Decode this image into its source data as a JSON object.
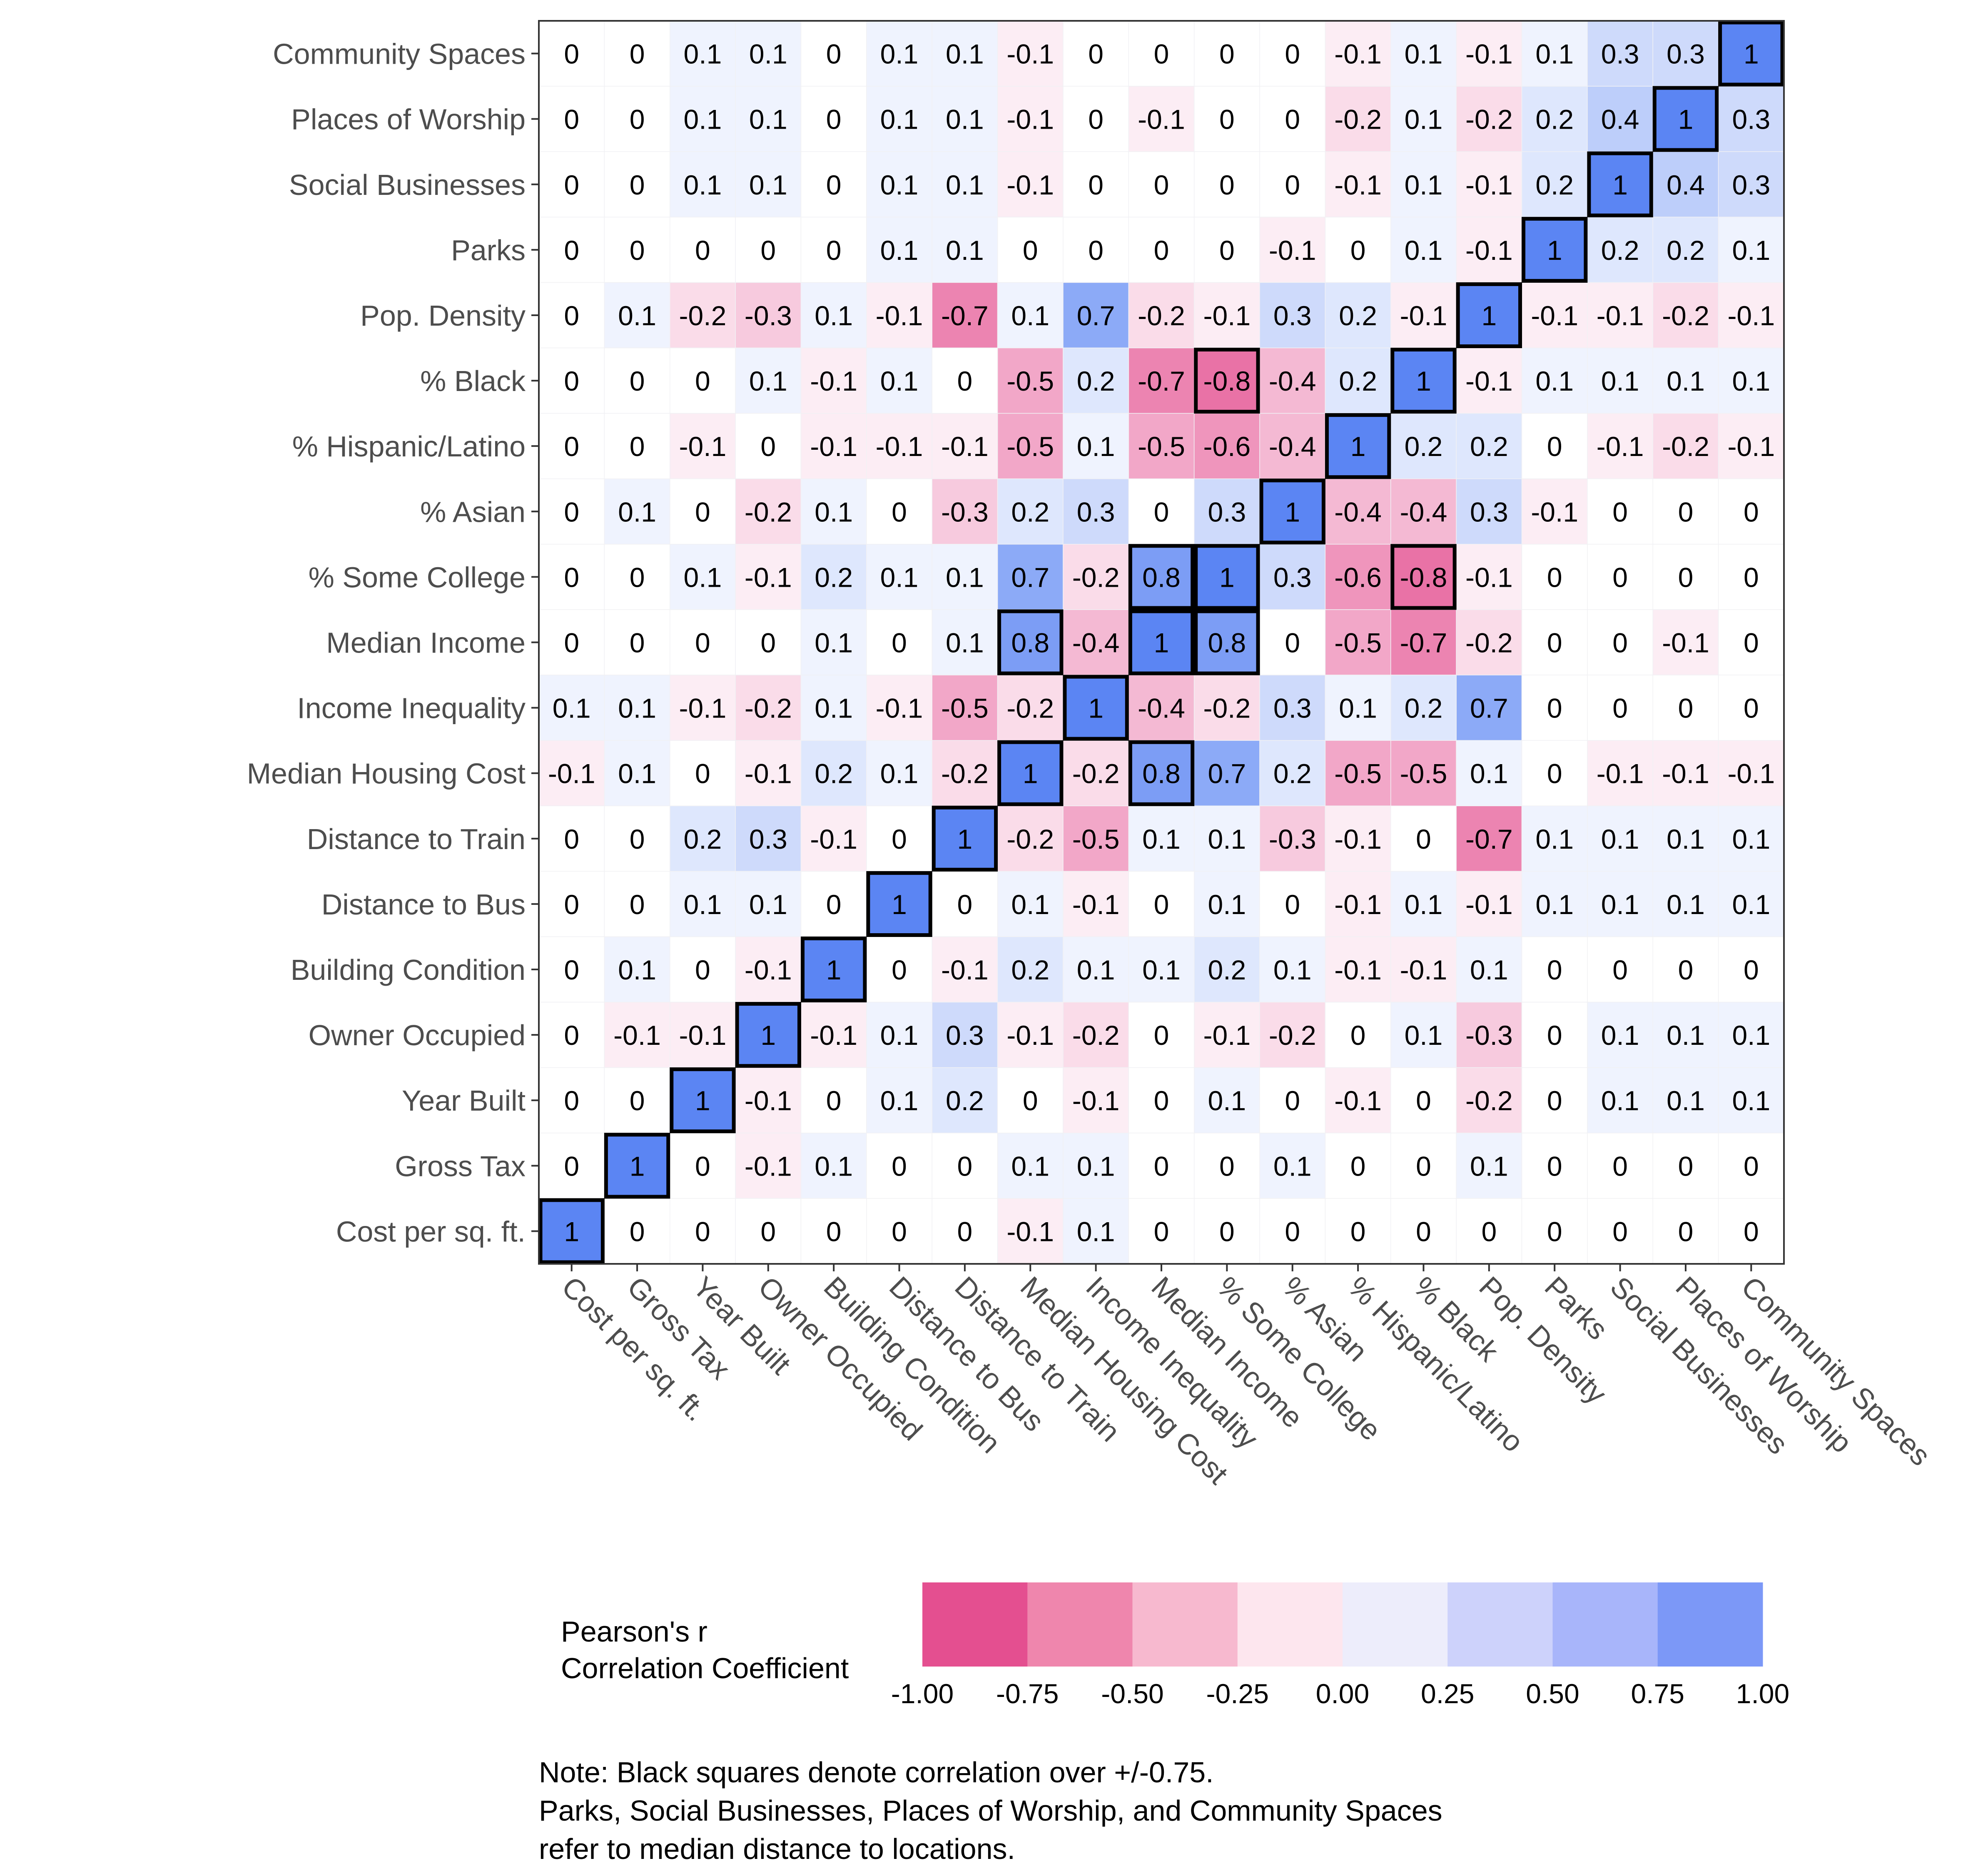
{
  "chart_data": {
    "type": "heatmap",
    "title": "",
    "x_labels": [
      "Cost per sq. ft.",
      "Gross Tax",
      "Year Built",
      "Owner Occupied",
      "Building Condition",
      "Distance to Bus",
      "Distance to Train",
      "Median Housing Cost",
      "Income Inequality",
      "Median Income",
      "% Some College",
      "% Asian",
      "% Hispanic/Latino",
      "% Black",
      "Pop. Density",
      "Parks",
      "Social Businesses",
      "Places of Worship",
      "Community Spaces"
    ],
    "y_labels_top_to_bottom": [
      "Community Spaces",
      "Places of Worship",
      "Social Businesses",
      "Parks",
      "Pop. Density",
      "% Black",
      "% Hispanic/Latino",
      "% Asian",
      "% Some College",
      "Median Income",
      "Income Inequality",
      "Median Housing Cost",
      "Distance to Train",
      "Distance to Bus",
      "Building Condition",
      "Owner Occupied",
      "Year Built",
      "Gross Tax",
      "Cost per sq. ft."
    ],
    "values_rows_top_to_bottom": [
      [
        0,
        0,
        0.1,
        0.1,
        0,
        0.1,
        0.1,
        -0.1,
        0,
        0,
        0,
        0,
        -0.1,
        0.1,
        -0.1,
        0.1,
        0.3,
        0.3,
        1
      ],
      [
        0,
        0,
        0.1,
        0.1,
        0,
        0.1,
        0.1,
        -0.1,
        0,
        -0.1,
        0,
        0,
        -0.2,
        0.1,
        -0.2,
        0.2,
        0.4,
        1,
        0.3
      ],
      [
        0,
        0,
        0.1,
        0.1,
        0,
        0.1,
        0.1,
        -0.1,
        0,
        0,
        0,
        0,
        -0.1,
        0.1,
        -0.1,
        0.2,
        1,
        0.4,
        0.3
      ],
      [
        0,
        0,
        0,
        0,
        0,
        0.1,
        0.1,
        0,
        0,
        0,
        0,
        -0.1,
        0,
        0.1,
        -0.1,
        1,
        0.2,
        0.2,
        0.1
      ],
      [
        0,
        0.1,
        -0.2,
        -0.3,
        0.1,
        -0.1,
        -0.7,
        0.1,
        0.7,
        -0.2,
        -0.1,
        0.3,
        0.2,
        -0.1,
        1,
        -0.1,
        -0.1,
        -0.2,
        -0.1
      ],
      [
        0,
        0,
        0,
        0.1,
        -0.1,
        0.1,
        0,
        -0.5,
        0.2,
        -0.7,
        -0.8,
        -0.4,
        0.2,
        1,
        -0.1,
        0.1,
        0.1,
        0.1,
        0.1
      ],
      [
        0,
        0,
        -0.1,
        0,
        -0.1,
        -0.1,
        -0.1,
        -0.5,
        0.1,
        -0.5,
        -0.6,
        -0.4,
        1,
        0.2,
        0.2,
        0,
        -0.1,
        -0.2,
        -0.1
      ],
      [
        0,
        0.1,
        0,
        -0.2,
        0.1,
        0,
        -0.3,
        0.2,
        0.3,
        0,
        0.3,
        1,
        -0.4,
        -0.4,
        0.3,
        -0.1,
        0,
        0,
        0
      ],
      [
        0,
        0,
        0.1,
        -0.1,
        0.2,
        0.1,
        0.1,
        0.7,
        -0.2,
        0.8,
        1,
        0.3,
        -0.6,
        -0.8,
        -0.1,
        0,
        0,
        0,
        0
      ],
      [
        0,
        0,
        0,
        0,
        0.1,
        0,
        0.1,
        0.8,
        -0.4,
        1,
        0.8,
        0,
        -0.5,
        -0.7,
        -0.2,
        0,
        0,
        -0.1,
        0
      ],
      [
        0.1,
        0.1,
        -0.1,
        -0.2,
        0.1,
        -0.1,
        -0.5,
        -0.2,
        1,
        -0.4,
        -0.2,
        0.3,
        0.1,
        0.2,
        0.7,
        0,
        0,
        0,
        0
      ],
      [
        -0.1,
        0.1,
        0,
        -0.1,
        0.2,
        0.1,
        -0.2,
        1,
        -0.2,
        0.8,
        0.7,
        0.2,
        -0.5,
        -0.5,
        0.1,
        0,
        -0.1,
        -0.1,
        -0.1
      ],
      [
        0,
        0,
        0.2,
        0.3,
        -0.1,
        0,
        1,
        -0.2,
        -0.5,
        0.1,
        0.1,
        -0.3,
        -0.1,
        0,
        -0.7,
        0.1,
        0.1,
        0.1,
        0.1
      ],
      [
        0,
        0,
        0.1,
        0.1,
        0,
        1,
        0,
        0.1,
        -0.1,
        0,
        0.1,
        0,
        -0.1,
        0.1,
        -0.1,
        0.1,
        0.1,
        0.1,
        0.1
      ],
      [
        0,
        0.1,
        0,
        -0.1,
        1,
        0,
        -0.1,
        0.2,
        0.1,
        0.1,
        0.2,
        0.1,
        -0.1,
        -0.1,
        0.1,
        0,
        0,
        0,
        0
      ],
      [
        0,
        -0.1,
        -0.1,
        1,
        -0.1,
        0.1,
        0.3,
        -0.1,
        -0.2,
        0,
        -0.1,
        -0.2,
        0,
        0.1,
        -0.3,
        0,
        0.1,
        0.1,
        0.1
      ],
      [
        0,
        0,
        1,
        -0.1,
        0,
        0.1,
        0.2,
        0,
        -0.1,
        0,
        0.1,
        0,
        -0.1,
        0,
        -0.2,
        0,
        0.1,
        0.1,
        0.1
      ],
      [
        0,
        1,
        0,
        -0.1,
        0.1,
        0,
        0,
        0.1,
        0.1,
        0,
        0,
        0.1,
        0,
        0,
        0.1,
        0,
        0,
        0,
        0
      ],
      [
        1,
        0,
        0,
        0,
        0,
        0,
        0,
        -0.1,
        0.1,
        0,
        0,
        0,
        0,
        0,
        0,
        0,
        0,
        0,
        0
      ]
    ],
    "highlight_threshold": 0.75,
    "value_range": [
      -1,
      1
    ],
    "legend": {
      "title_lines": [
        "Pearson's r",
        "Correlation Coefficient"
      ],
      "breaks": [
        "-1.00",
        "-0.75",
        "-0.50",
        "-0.25",
        "0.00",
        "0.25",
        "0.50",
        "0.75",
        "1.00"
      ],
      "bin_colors": [
        "#e44f90",
        "#ef86ad",
        "#f7b9cf",
        "#fde6ee",
        "#ededfb",
        "#cdd2fb",
        "#a8b5fa",
        "#7c98f7"
      ],
      "placement": "bottom"
    },
    "colors": {
      "strong_negative": "#e44f90",
      "neutral": "#ffffff",
      "strong_positive": "#5b85f3",
      "highlight_border": "#000000"
    }
  },
  "note": {
    "lines": [
      "Note: Black squares denote correlation over +/-0.75.",
      "Parks, Social Businesses, Places of Worship, and Community Spaces",
      "refer to median distance to locations."
    ]
  }
}
